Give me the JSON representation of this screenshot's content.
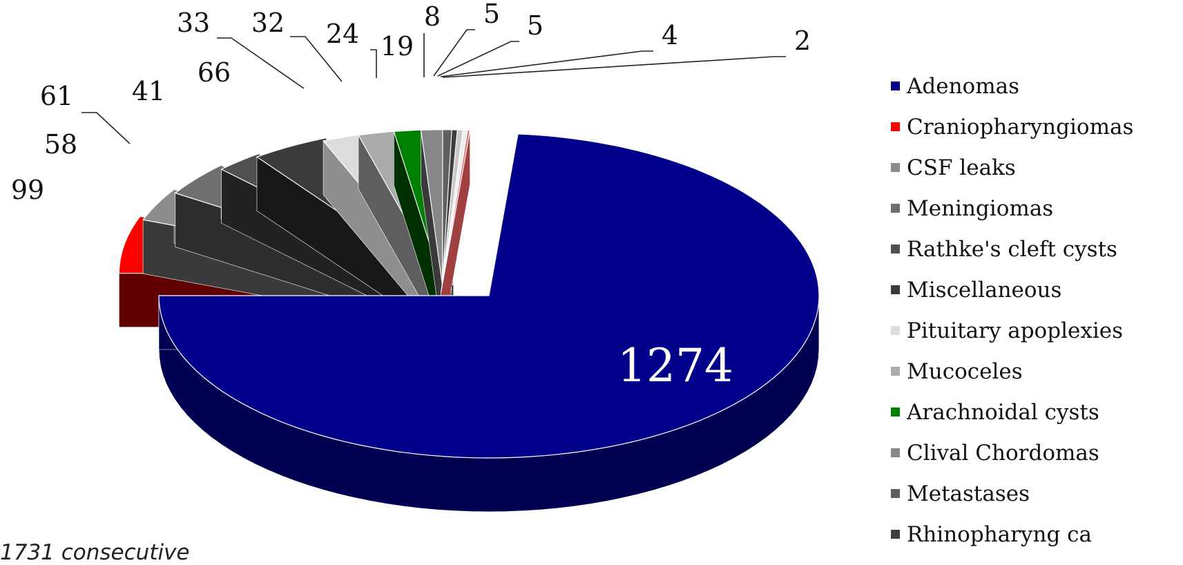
{
  "chart_data": {
    "type": "pie",
    "style": "3d-exploded",
    "legend_position": "right",
    "title": "",
    "slices": [
      {
        "label": "Adenomas",
        "value": 1274,
        "color": "#00008b",
        "side": "#000052"
      },
      {
        "label": "Craniopharyngiomas",
        "value": 99,
        "color": "#ff0000",
        "side": "#600000"
      },
      {
        "label": "CSF leaks",
        "value": 58,
        "color": "#8c8c8c",
        "side": "#3a3a3a"
      },
      {
        "label": "Meningiomas",
        "value": 61,
        "color": "#6f6f6f",
        "side": "#2e2e2e"
      },
      {
        "label": "Rathke's cleft cysts",
        "value": 41,
        "color": "#505050",
        "side": "#222222"
      },
      {
        "label": "Miscellaneous",
        "value": 66,
        "color": "#3b3b3b",
        "side": "#181818"
      },
      {
        "label": "Pituitary apoplexies",
        "value": 33,
        "color": "#dcdcdc",
        "side": "#8e8e8e"
      },
      {
        "label": "Mucoceles",
        "value": 32,
        "color": "#ababab",
        "side": "#5e5e5e"
      },
      {
        "label": "Arachnoidal cysts",
        "value": 24,
        "color": "#008000",
        "side": "#003000"
      },
      {
        "label": "Clival Chordomas",
        "value": 19,
        "color": "#888888",
        "side": "#3a3a3a"
      },
      {
        "label": "Metastases",
        "value": 8,
        "color": "#5f5f5f",
        "side": "#2a2a2a"
      },
      {
        "label": "Rhinopharyng ca",
        "value": 5,
        "color": "#3e3e3e",
        "side": "#1a1a1a"
      },
      {
        "label": "",
        "value": 5,
        "color": "#c8c8c8",
        "side": "#7a7a7a"
      },
      {
        "label": "",
        "value": 4,
        "color": "#eeeeee",
        "side": "#9a9a9a"
      },
      {
        "label": "",
        "value": 2,
        "color": "#e07070",
        "side": "#a04040"
      }
    ],
    "data_labels": [
      "1274",
      "99",
      "58",
      "61",
      "41",
      "66",
      "33",
      "32",
      "24",
      "19",
      "8",
      "5",
      "5",
      "4",
      "2"
    ]
  },
  "annotation": {
    "note": "1731 consecutive"
  },
  "icons": {
    "legend_marker": "square-swatch-icon"
  }
}
